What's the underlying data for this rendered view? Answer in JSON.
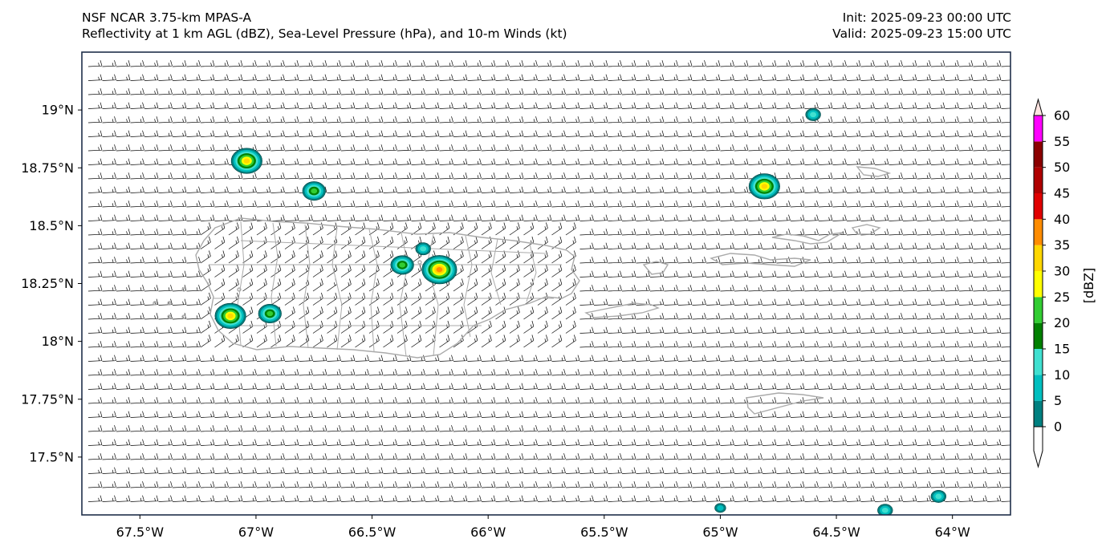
{
  "header": {
    "model": "NSF NCAR 3.75-km MPAS-A",
    "fields": "Reflectivity at 1 km AGL (dBZ), Sea-Level Pressure (hPa), and 10-m Winds (kt)",
    "init": "Init: 2025-09-23 00:00 UTC",
    "valid": "Valid: 2025-09-23 15:00 UTC"
  },
  "map": {
    "lon_range": [
      -67.75,
      -63.75
    ],
    "lat_range": [
      17.25,
      19.25
    ],
    "lat_ticks": [
      {
        "value": 19.0,
        "label": "19°N"
      },
      {
        "value": 18.75,
        "label": "18.75°N"
      },
      {
        "value": 18.5,
        "label": "18.5°N"
      },
      {
        "value": 18.25,
        "label": "18.25°N"
      },
      {
        "value": 18.0,
        "label": "18°N"
      },
      {
        "value": 17.75,
        "label": "17.75°N"
      },
      {
        "value": 17.5,
        "label": "17.5°N"
      }
    ],
    "lon_ticks": [
      {
        "value": -67.5,
        "label": "67.5°W"
      },
      {
        "value": -67.0,
        "label": "67°W"
      },
      {
        "value": -66.5,
        "label": "66.5°W"
      },
      {
        "value": -66.0,
        "label": "66°W"
      },
      {
        "value": -65.5,
        "label": "65.5°W"
      },
      {
        "value": -65.0,
        "label": "65°W"
      },
      {
        "value": -64.5,
        "label": "64.5°W"
      },
      {
        "value": -64.0,
        "label": "64°W"
      }
    ],
    "colors": {
      "land_border": "#aaaaaa",
      "barb": "#000000",
      "frame": "#1f2f4a"
    },
    "echoes": [
      {
        "lon": -67.04,
        "lat": 18.78,
        "peak_dbz": 30
      },
      {
        "lon": -66.75,
        "lat": 18.65,
        "peak_dbz": 20
      },
      {
        "lon": -64.81,
        "lat": 18.67,
        "peak_dbz": 30
      },
      {
        "lon": -64.6,
        "lat": 18.98,
        "peak_dbz": 10
      },
      {
        "lon": -66.21,
        "lat": 18.31,
        "peak_dbz": 35
      },
      {
        "lon": -66.37,
        "lat": 18.33,
        "peak_dbz": 20
      },
      {
        "lon": -66.28,
        "lat": 18.4,
        "peak_dbz": 10
      },
      {
        "lon": -67.11,
        "lat": 18.11,
        "peak_dbz": 30
      },
      {
        "lon": -66.94,
        "lat": 18.12,
        "peak_dbz": 20
      },
      {
        "lon": -64.29,
        "lat": 17.27,
        "peak_dbz": 10
      },
      {
        "lon": -64.06,
        "lat": 17.33,
        "peak_dbz": 10
      },
      {
        "lon": -65.0,
        "lat": 17.28,
        "peak_dbz": 5
      }
    ]
  },
  "colorbar": {
    "label": "[dBZ]",
    "levels": [
      0,
      5,
      10,
      15,
      20,
      25,
      30,
      35,
      40,
      45,
      50,
      55,
      60
    ],
    "colors": [
      "#008080",
      "#00bfbf",
      "#40e0d0",
      "#008000",
      "#32cd32",
      "#ffff00",
      "#ffd700",
      "#ff8c00",
      "#e00000",
      "#b00000",
      "#8b0000",
      "#ff00ff",
      "#ffe4e1"
    ],
    "tick_labels": [
      "0",
      "5",
      "10",
      "15",
      "20",
      "25",
      "30",
      "35",
      "40",
      "45",
      "50",
      "55",
      "60"
    ]
  }
}
